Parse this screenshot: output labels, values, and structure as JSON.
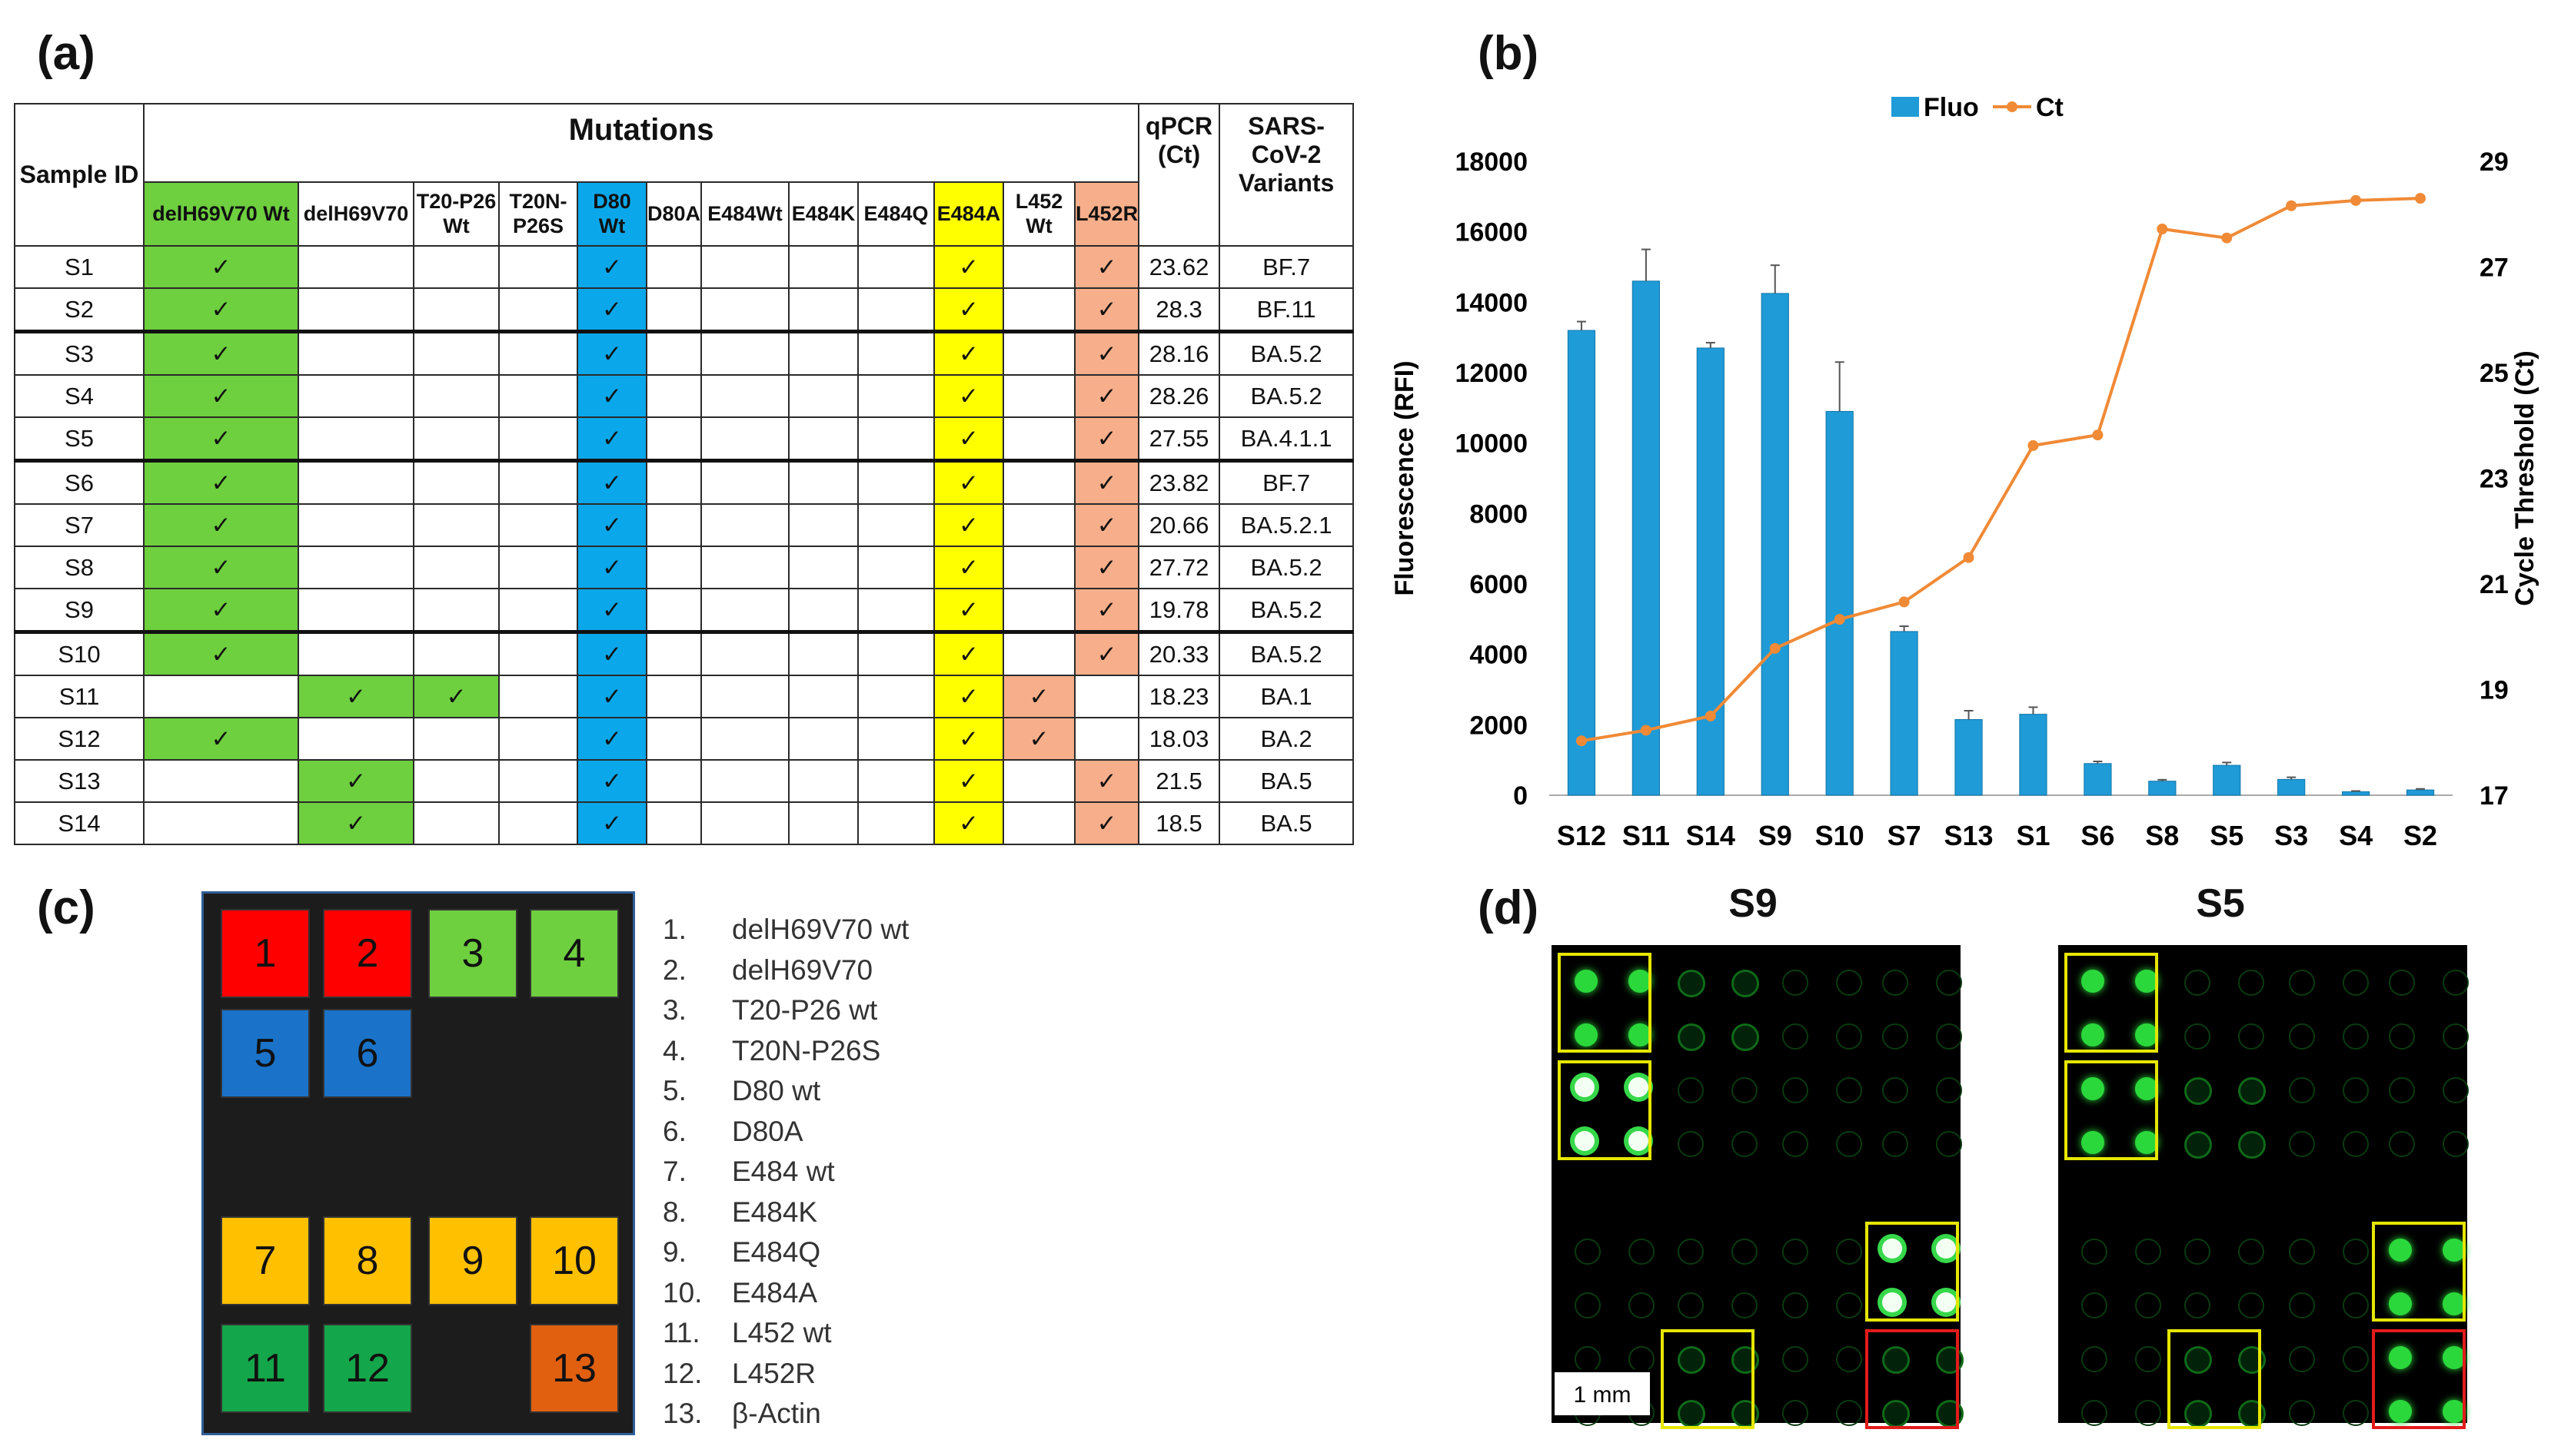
{
  "panels": {
    "a": "(a)",
    "b": "(b)",
    "c": "(c)",
    "d": "(d)"
  },
  "table": {
    "sample_id_header": "Sample ID",
    "mutations_header": "Mutations",
    "qpcr_header": "qPCR (Ct)",
    "variants_header": "SARS-CoV-2 Variants",
    "columns": [
      "delH69V70 Wt",
      "delH69V70",
      "T20-P26 Wt",
      "T20N-P26S",
      "D80 Wt",
      "D80A",
      "E484Wt",
      "E484K",
      "E484Q",
      "E484A",
      "L452 Wt",
      "L452R"
    ],
    "check_glyph": "✓",
    "rows": [
      {
        "id": "S1",
        "checks": [
          0,
          4,
          9,
          11
        ],
        "ct": "23.62",
        "variant": "BF.7"
      },
      {
        "id": "S2",
        "checks": [
          0,
          4,
          9,
          11
        ],
        "ct": "28.3",
        "variant": "BF.11"
      },
      {
        "id": "S3",
        "checks": [
          0,
          4,
          9,
          11
        ],
        "ct": "28.16",
        "variant": "BA.5.2"
      },
      {
        "id": "S4",
        "checks": [
          0,
          4,
          9,
          11
        ],
        "ct": "28.26",
        "variant": "BA.5.2"
      },
      {
        "id": "S5",
        "checks": [
          0,
          4,
          9,
          11
        ],
        "ct": "27.55",
        "variant": "BA.4.1.1"
      },
      {
        "id": "S6",
        "checks": [
          0,
          4,
          9,
          11
        ],
        "ct": "23.82",
        "variant": "BF.7"
      },
      {
        "id": "S7",
        "checks": [
          0,
          4,
          9,
          11
        ],
        "ct": "20.66",
        "variant": "BA.5.2.1"
      },
      {
        "id": "S8",
        "checks": [
          0,
          4,
          9,
          11
        ],
        "ct": "27.72",
        "variant": "BA.5.2"
      },
      {
        "id": "S9",
        "checks": [
          0,
          4,
          9,
          11
        ],
        "ct": "19.78",
        "variant": "BA.5.2"
      },
      {
        "id": "S10",
        "checks": [
          0,
          4,
          9,
          11
        ],
        "ct": "20.33",
        "variant": "BA.5.2"
      },
      {
        "id": "S11",
        "checks": [
          1,
          2,
          4,
          9,
          10
        ],
        "ct": "18.23",
        "variant": "BA.1"
      },
      {
        "id": "S12",
        "checks": [
          0,
          4,
          9,
          10
        ],
        "ct": "18.03",
        "variant": "BA.2"
      },
      {
        "id": "S13",
        "checks": [
          1,
          4,
          9,
          11
        ],
        "ct": "21.5",
        "variant": "BA.5"
      },
      {
        "id": "S14",
        "checks": [
          1,
          4,
          9,
          11
        ],
        "ct": "18.5",
        "variant": "BA.5"
      }
    ]
  },
  "chart_data": {
    "type": "bar",
    "title": "",
    "categories": [
      "S12",
      "S11",
      "S14",
      "S9",
      "S10",
      "S7",
      "S13",
      "S1",
      "S6",
      "S8",
      "S5",
      "S3",
      "S4",
      "S2"
    ],
    "series": [
      {
        "name": "Fluo",
        "type": "bar",
        "axis": "left",
        "color": "#1f9bd7",
        "values": [
          13200,
          14600,
          12700,
          14250,
          10900,
          4650,
          2150,
          2300,
          900,
          400,
          850,
          450,
          100,
          150
        ],
        "errors": [
          250,
          900,
          150,
          800,
          1400,
          150,
          250,
          200,
          60,
          40,
          80,
          60,
          20,
          30
        ]
      },
      {
        "name": "Ct",
        "type": "line",
        "axis": "right",
        "color": "#f08a36",
        "values": [
          18.03,
          18.23,
          18.5,
          19.78,
          20.33,
          20.66,
          21.5,
          23.62,
          23.82,
          27.72,
          27.55,
          28.16,
          28.26,
          28.3
        ]
      }
    ],
    "ylabel": "Fluorescence (RFI)",
    "y2label": "Cycle Threshold (Ct)",
    "ylim": [
      0,
      18000
    ],
    "y2lim": [
      17,
      29
    ],
    "yticks": [
      "0",
      "2000",
      "4000",
      "6000",
      "8000",
      "10000",
      "12000",
      "14000",
      "16000",
      "18000"
    ],
    "y2ticks": [
      "17",
      "19",
      "21",
      "23",
      "25",
      "27",
      "29"
    ],
    "legend": [
      "Fluo",
      "Ct"
    ],
    "legend_position": "top"
  },
  "layout_c": {
    "squares": [
      {
        "n": "1",
        "color": "#ff0000"
      },
      {
        "n": "2",
        "color": "#ff0000"
      },
      {
        "n": "3",
        "color": "#6ecf3f"
      },
      {
        "n": "4",
        "color": "#6ecf3f"
      },
      {
        "n": "5",
        "color": "#1a73c8"
      },
      {
        "n": "6",
        "color": "#1a73c8"
      },
      {
        "n": "7",
        "color": "#ffc000"
      },
      {
        "n": "8",
        "color": "#ffc000"
      },
      {
        "n": "9",
        "color": "#ffc000"
      },
      {
        "n": "10",
        "color": "#ffc000"
      },
      {
        "n": "11",
        "color": "#14a64a"
      },
      {
        "n": "12",
        "color": "#14a64a"
      },
      {
        "n": "13",
        "color": "#e06010"
      }
    ],
    "legend": [
      {
        "n": "1.",
        "t": "delH69V70 wt"
      },
      {
        "n": "2.",
        "t": "delH69V70"
      },
      {
        "n": "3.",
        "t": "T20-P26 wt"
      },
      {
        "n": "4.",
        "t": "T20N-P26S"
      },
      {
        "n": "5.",
        "t": "D80 wt"
      },
      {
        "n": "6.",
        "t": "D80A"
      },
      {
        "n": "7.",
        "t": "E484 wt"
      },
      {
        "n": "8.",
        "t": "E484K"
      },
      {
        "n": "9.",
        "t": "E484Q"
      },
      {
        "n": "10.",
        "t": "E484A"
      },
      {
        "n": "11.",
        "t": "L452 wt"
      },
      {
        "n": "12.",
        "t": "L452R"
      },
      {
        "n": "13.",
        "t": "β-Actin"
      }
    ]
  },
  "images_d": {
    "left_label": "S9",
    "right_label": "S5",
    "scale_bar": "1 mm"
  }
}
